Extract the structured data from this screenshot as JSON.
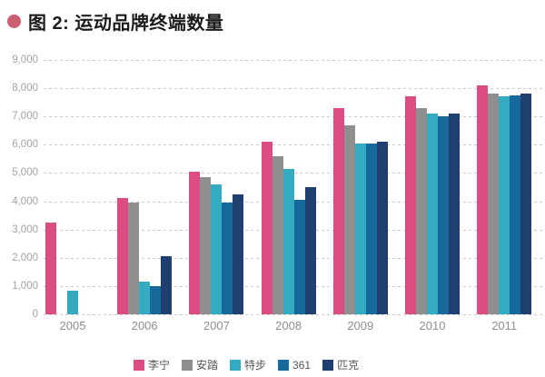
{
  "title": {
    "text": "图 2: 运动品牌终端数量",
    "bullet_color": "#cb5f72"
  },
  "chart_data": {
    "type": "bar",
    "title": "图 2: 运动品牌终端数量",
    "categories": [
      "2005",
      "2006",
      "2007",
      "2008",
      "2009",
      "2010",
      "2011"
    ],
    "series": [
      {
        "name": "李宁",
        "color": "#db4d82",
        "values": [
          3250,
          4100,
          5050,
          6100,
          7300,
          7700,
          8100
        ]
      },
      {
        "name": "安踏",
        "color": "#8f8f8f",
        "values": [
          null,
          3950,
          4850,
          5600,
          6700,
          7300,
          7800
        ]
      },
      {
        "name": "特步",
        "color": "#35abc2",
        "values": [
          850,
          1150,
          4600,
          5150,
          6050,
          7100,
          7700
        ]
      },
      {
        "name": "361",
        "color": "#17699b",
        "values": [
          null,
          1000,
          3950,
          4050,
          6050,
          7000,
          7750
        ]
      },
      {
        "name": "匹克",
        "color": "#1f3f70",
        "values": [
          null,
          2050,
          4250,
          4500,
          6100,
          7100,
          7800
        ]
      }
    ],
    "xlabel": "",
    "ylabel": "",
    "ylim": [
      0,
      9000
    ],
    "ytick_step": 1000,
    "ytick_labels": [
      "0",
      "1,000",
      "2,000",
      "3,000",
      "4,000",
      "5,000",
      "6,000",
      "7,000",
      "8,000",
      "9,000"
    ],
    "grid": "horizontal-dashed",
    "gridline_color": "#cbcbcb",
    "legend_position": "bottom"
  }
}
